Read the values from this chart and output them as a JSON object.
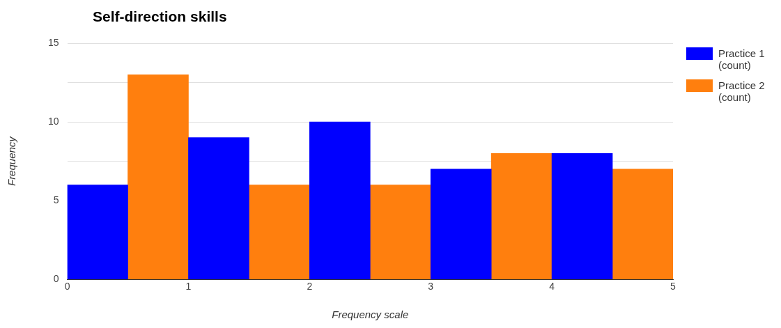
{
  "chart_data": {
    "type": "histogram",
    "title": "Self-direction skills",
    "xlabel": "Frequency scale",
    "ylabel": "Frequency",
    "bins": [
      0,
      0.5,
      1,
      1.5,
      2,
      2.5,
      3,
      3.5,
      4,
      4.5,
      5
    ],
    "series": [
      {
        "name": "Practice 1 (count)",
        "color": "#0000ff",
        "values": [
          6,
          null,
          9,
          null,
          10,
          null,
          7,
          null,
          8,
          null
        ]
      },
      {
        "name": "Practice 2 (count)",
        "color": "#ff7f0e",
        "values": [
          null,
          13,
          null,
          6,
          null,
          6,
          null,
          8,
          null,
          7
        ]
      }
    ],
    "xlim": [
      0,
      5
    ],
    "xticks": [
      0,
      1,
      2,
      3,
      4,
      5
    ],
    "ylim": [
      0,
      15
    ],
    "yticks": [
      0,
      5,
      {
        "value": 7.5,
        "label": null
      },
      10,
      {
        "value": 12.5,
        "label": null
      },
      15
    ],
    "grid": "y",
    "legend": "right"
  }
}
